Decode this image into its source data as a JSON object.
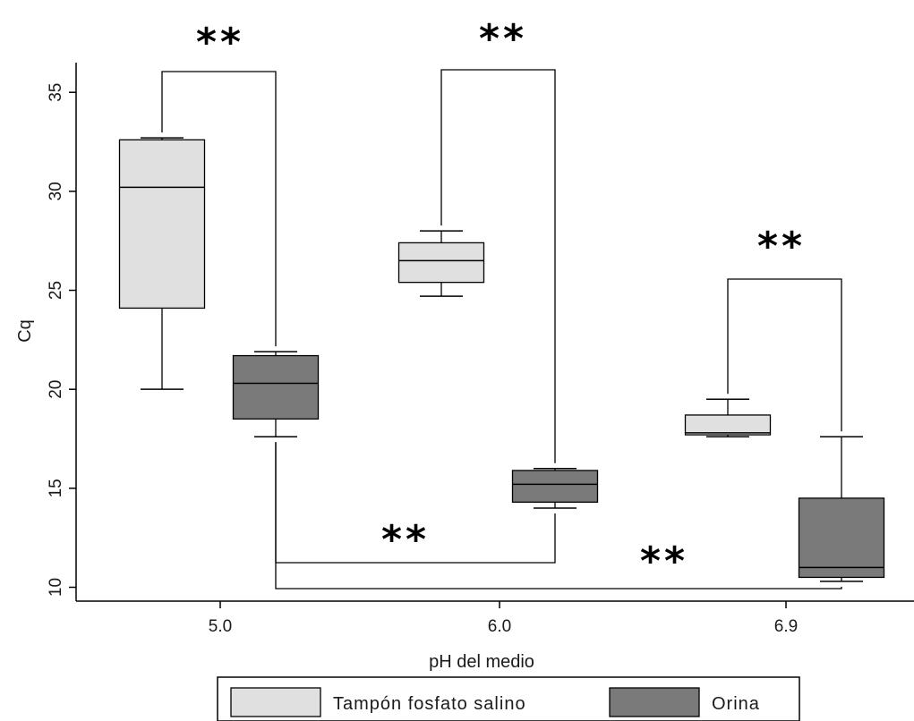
{
  "chart_data": {
    "type": "box",
    "xlabel": "pH del medio",
    "ylabel": "Cq",
    "categories": [
      "5.0",
      "6.0",
      "6.9"
    ],
    "ylim": [
      9.3,
      36.5
    ],
    "yticks": [
      "10",
      "15",
      "20",
      "25",
      "30",
      "35"
    ],
    "grid": false,
    "legend_position": "bottom",
    "series": [
      {
        "name": "Tampón fosfato salino",
        "color": "#e0e0e0",
        "boxes": [
          {
            "category": "5.0",
            "min": 20.0,
            "q1": 24.1,
            "median": 30.2,
            "q3": 32.6,
            "max": 32.7
          },
          {
            "category": "6.0",
            "min": 24.7,
            "q1": 25.4,
            "median": 26.5,
            "q3": 27.4,
            "max": 28.0
          },
          {
            "category": "6.9",
            "min": 17.6,
            "q1": 17.7,
            "median": 17.8,
            "q3": 18.7,
            "max": 19.5
          }
        ]
      },
      {
        "name": "Orina",
        "color": "#7a7a7a",
        "boxes": [
          {
            "category": "5.0",
            "min": 17.6,
            "q1": 18.5,
            "median": 20.3,
            "q3": 21.7,
            "max": 21.9
          },
          {
            "category": "6.0",
            "min": 14.0,
            "q1": 14.3,
            "median": 15.2,
            "q3": 15.9,
            "max": 16.0
          },
          {
            "category": "6.9",
            "min": 10.3,
            "q1": 10.5,
            "median": 11.0,
            "q3": 14.5,
            "max": 17.6
          }
        ]
      }
    ],
    "annotations": [
      {
        "label": "**",
        "type": "bracket-top",
        "from": "5.0|0",
        "to": "5.0|1"
      },
      {
        "label": "**",
        "type": "bracket-top",
        "from": "6.0|0",
        "to": "6.0|1"
      },
      {
        "label": "**",
        "type": "bracket-top",
        "from": "6.9|0",
        "to": "6.9|1"
      },
      {
        "label": "**",
        "type": "bracket-bottom",
        "from": "5.0|1",
        "to": "6.0|1"
      },
      {
        "label": "**",
        "type": "bracket-bottom",
        "from": "5.0|1",
        "to": "6.9|1"
      }
    ]
  }
}
